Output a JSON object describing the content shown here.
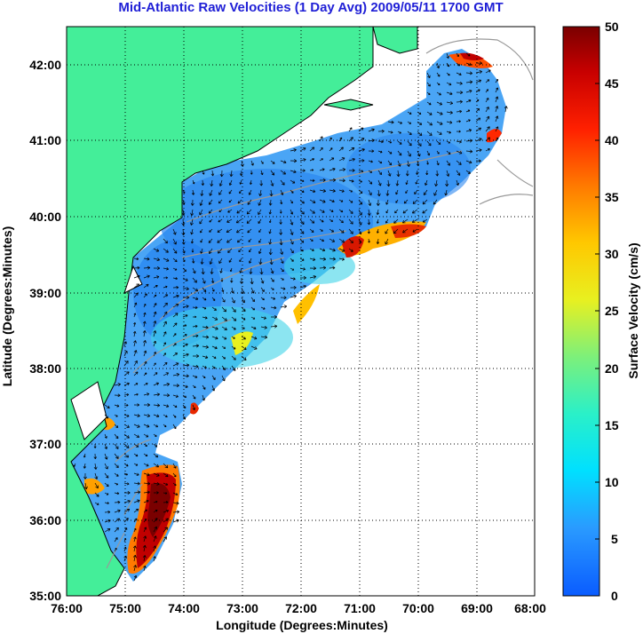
{
  "title": "Mid-Atlantic Raw Velocities (1 Day Avg) 2009/05/11 1700 GMT",
  "xlabel": "Longitude (Degrees:Minutes)",
  "ylabel": "Latitude (Degrees:Minutes)",
  "colorbar": {
    "label": "Surface Velocity (cm/s)",
    "min": 0,
    "max": 50,
    "ticks": [
      "0",
      "5",
      "10",
      "15",
      "20",
      "25",
      "30",
      "35",
      "40",
      "45",
      "50"
    ]
  },
  "x_ticks": [
    "76:00",
    "75:00",
    "74:00",
    "73:00",
    "72:00",
    "71:00",
    "70:00",
    "69:00",
    "68:00"
  ],
  "y_ticks": [
    "42:00",
    "41:00",
    "40:00",
    "39:00",
    "38:00",
    "37:00",
    "36:00",
    "35:00"
  ],
  "colors": {
    "land": "#44ee99",
    "ocean_bg": "#ffffff",
    "title": "#1f1fd6",
    "bathymetry": "#999999"
  }
}
